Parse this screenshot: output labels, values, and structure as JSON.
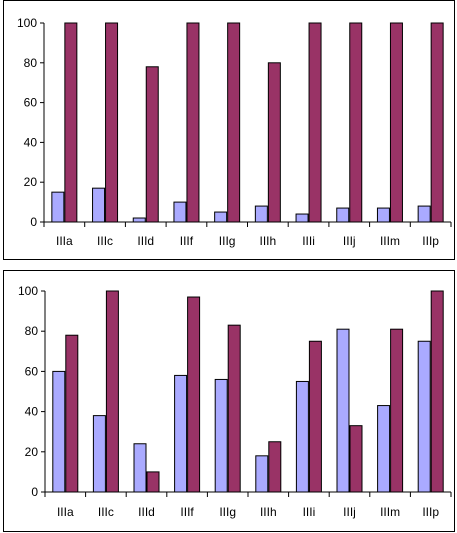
{
  "colors": {
    "series_a": "#aaaaff",
    "series_b": "#993366",
    "axis": "#000000"
  },
  "chart_data": [
    {
      "type": "bar",
      "categories": [
        "IIIa",
        "IIIc",
        "IIId",
        "IIIf",
        "IIIg",
        "IIIh",
        "IIIi",
        "IIIj",
        "IIIm",
        "IIIp"
      ],
      "series": [
        {
          "values": [
            15,
            17,
            2,
            10,
            5,
            8,
            4,
            7,
            7,
            8
          ]
        },
        {
          "values": [
            100,
            100,
            78,
            100,
            100,
            80,
            100,
            100,
            100,
            100
          ]
        }
      ],
      "ylim": [
        0,
        100
      ],
      "yticks": [
        0,
        20,
        40,
        60,
        80,
        100
      ],
      "grid": false,
      "legend": "none"
    },
    {
      "type": "bar",
      "categories": [
        "IIIa",
        "IIIc",
        "IIId",
        "IIIf",
        "IIIg",
        "IIIh",
        "IIIi",
        "IIIj",
        "IIIm",
        "IIIp"
      ],
      "series": [
        {
          "values": [
            60,
            38,
            24,
            58,
            56,
            18,
            55,
            81,
            43,
            75
          ]
        },
        {
          "values": [
            78,
            100,
            10,
            97,
            83,
            25,
            75,
            33,
            81,
            100
          ]
        }
      ],
      "ylim": [
        0,
        100
      ],
      "yticks": [
        0,
        20,
        40,
        60,
        80,
        100
      ],
      "grid": false,
      "legend": "none"
    }
  ]
}
